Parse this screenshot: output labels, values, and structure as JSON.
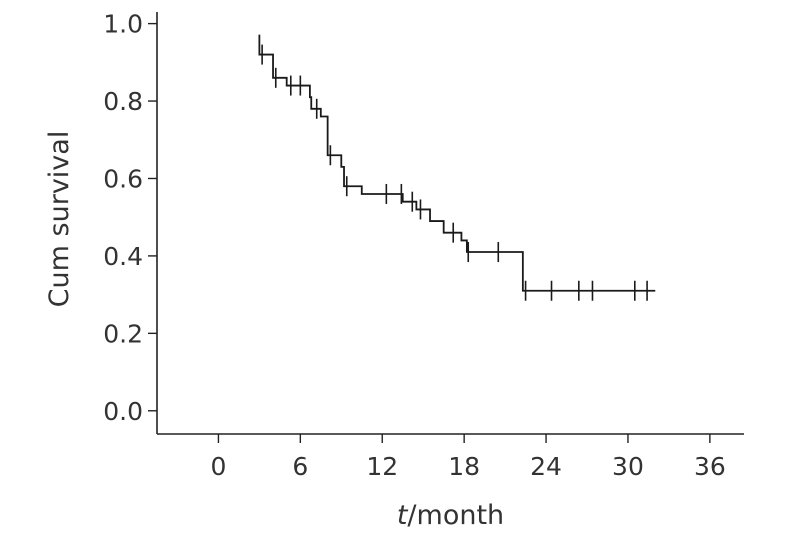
{
  "chart_data": {
    "type": "line",
    "subtype": "kaplan-meier-step",
    "title": "",
    "xlabel_italic": "t",
    "xlabel_rest": "/month",
    "ylabel": "Cum survival",
    "xlim": [
      -4.5,
      38.5
    ],
    "ylim": [
      -0.06,
      1.03
    ],
    "xticks": [
      0,
      6,
      12,
      18,
      24,
      30,
      36
    ],
    "xtick_labels": [
      "0",
      "6",
      "12",
      "18",
      "24",
      "30",
      "36"
    ],
    "yticks": [
      0.0,
      0.2,
      0.4,
      0.6,
      0.8,
      1.0
    ],
    "ytick_labels": [
      "0.0",
      "0.2",
      "0.4",
      "0.6",
      "0.8",
      "1.0"
    ],
    "grid": false,
    "legend": "none",
    "line_color": "#1a1a1a",
    "series": [
      {
        "steps": [
          {
            "x": 3.0,
            "y": 0.92
          },
          {
            "x": 4.0,
            "y": 0.86
          },
          {
            "x": 5.0,
            "y": 0.84
          },
          {
            "x": 6.7,
            "y": 0.81
          },
          {
            "x": 6.8,
            "y": 0.78
          },
          {
            "x": 7.5,
            "y": 0.76
          },
          {
            "x": 8.0,
            "y": 0.66
          },
          {
            "x": 9.0,
            "y": 0.63
          },
          {
            "x": 9.2,
            "y": 0.58
          },
          {
            "x": 10.5,
            "y": 0.56
          },
          {
            "x": 13.5,
            "y": 0.54
          },
          {
            "x": 14.5,
            "y": 0.52
          },
          {
            "x": 15.5,
            "y": 0.49
          },
          {
            "x": 16.5,
            "y": 0.46
          },
          {
            "x": 17.8,
            "y": 0.44
          },
          {
            "x": 18.2,
            "y": 0.41
          },
          {
            "x": 22.3,
            "y": 0.31
          }
        ],
        "end_x": 32.0,
        "censored": [
          {
            "x": 3.2,
            "y": 0.92
          },
          {
            "x": 4.2,
            "y": 0.86
          },
          {
            "x": 5.3,
            "y": 0.84
          },
          {
            "x": 6.0,
            "y": 0.84
          },
          {
            "x": 7.2,
            "y": 0.78
          },
          {
            "x": 8.2,
            "y": 0.66
          },
          {
            "x": 9.4,
            "y": 0.58
          },
          {
            "x": 12.3,
            "y": 0.56
          },
          {
            "x": 13.4,
            "y": 0.56
          },
          {
            "x": 14.2,
            "y": 0.54
          },
          {
            "x": 14.8,
            "y": 0.52
          },
          {
            "x": 17.2,
            "y": 0.46
          },
          {
            "x": 18.3,
            "y": 0.41
          },
          {
            "x": 20.5,
            "y": 0.41
          },
          {
            "x": 22.5,
            "y": 0.31
          },
          {
            "x": 24.4,
            "y": 0.31
          },
          {
            "x": 26.4,
            "y": 0.31
          },
          {
            "x": 27.4,
            "y": 0.31
          },
          {
            "x": 30.5,
            "y": 0.31
          },
          {
            "x": 31.4,
            "y": 0.31
          }
        ]
      }
    ]
  }
}
